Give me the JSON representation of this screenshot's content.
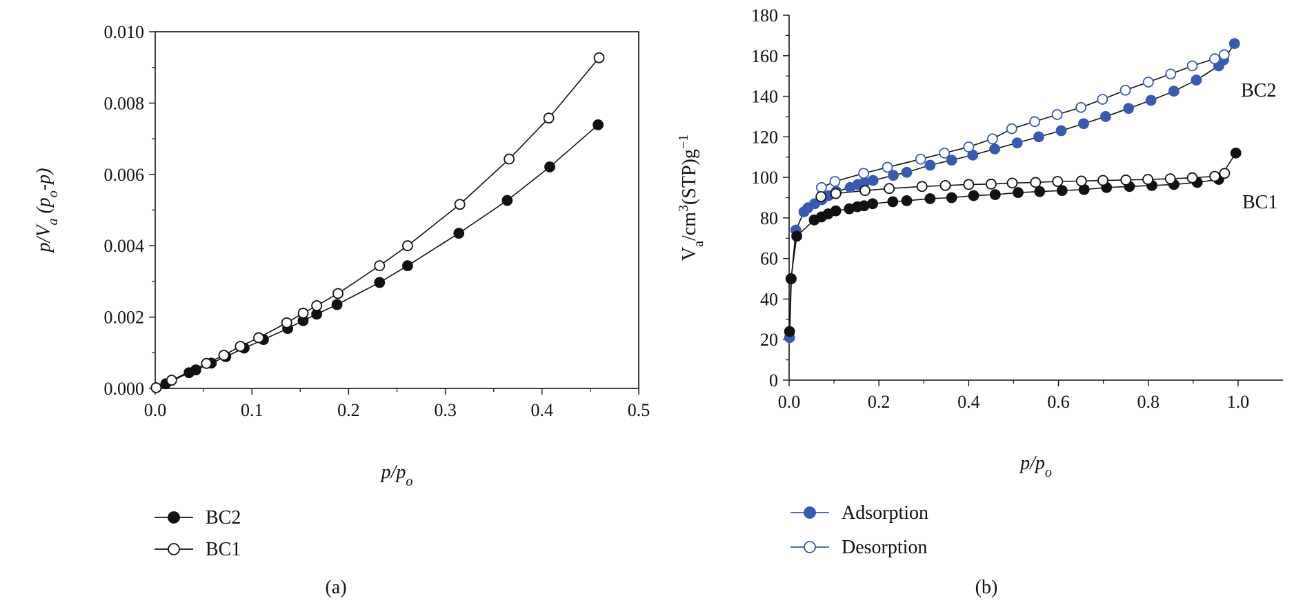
{
  "chart_data": [
    {
      "panel": "(a)",
      "type": "scatter",
      "xlabel_main": "p/p",
      "xlabel_sub": "o",
      "ylabel_parts": [
        "p/V",
        "a",
        " (p",
        "o",
        "-p)"
      ],
      "xlim": [
        0,
        0.5
      ],
      "ylim": [
        0,
        0.01
      ],
      "xticks": [
        {
          "value": 0.0,
          "label": "0.0"
        },
        {
          "value": 0.1,
          "label": "0.1"
        },
        {
          "value": 0.2,
          "label": "0.2"
        },
        {
          "value": 0.3,
          "label": "0.3"
        },
        {
          "value": 0.4,
          "label": "0.4"
        },
        {
          "value": 0.5,
          "label": "0.5"
        }
      ],
      "yticks": [
        {
          "value": 0.0,
          "label": "0.000"
        },
        {
          "value": 0.002,
          "label": "0.002"
        },
        {
          "value": 0.004,
          "label": "0.004"
        },
        {
          "value": 0.006,
          "label": "0.006"
        },
        {
          "value": 0.008,
          "label": "0.008"
        },
        {
          "value": 0.01,
          "label": "0.010"
        }
      ],
      "series": [
        {
          "name": "BC2",
          "marker": "filled",
          "color": "#111111",
          "x": [
            0.001,
            0.011,
            0.035,
            0.042,
            0.058,
            0.073,
            0.092,
            0.112,
            0.137,
            0.153,
            0.167,
            0.188,
            0.232,
            0.261,
            0.314,
            0.364,
            0.408,
            0.458
          ],
          "y": [
            2e-05,
            0.00013,
            0.00044,
            0.00052,
            0.00071,
            0.00089,
            0.00113,
            0.00137,
            0.00168,
            0.0019,
            0.00208,
            0.00235,
            0.00297,
            0.00344,
            0.00435,
            0.00527,
            0.00621,
            0.00739
          ]
        },
        {
          "name": "BC1",
          "marker": "open",
          "color": "#111111",
          "x": [
            0.001,
            0.017,
            0.053,
            0.071,
            0.088,
            0.107,
            0.136,
            0.153,
            0.167,
            0.189,
            0.232,
            0.261,
            0.315,
            0.366,
            0.407,
            0.459
          ],
          "y": [
            2e-05,
            0.00023,
            0.0007,
            0.00093,
            0.00118,
            0.00142,
            0.00184,
            0.00211,
            0.00232,
            0.00266,
            0.00344,
            0.004,
            0.00516,
            0.00643,
            0.00758,
            0.00927
          ]
        }
      ]
    },
    {
      "panel": "(b)",
      "type": "scatter",
      "xlabel_main": "p/p",
      "xlabel_sub": "o",
      "ylabel_parts": [
        "V",
        "a",
        "/cm",
        "3",
        "(STP)g",
        "−1"
      ],
      "xlim": [
        0,
        1.1
      ],
      "ylim": [
        0,
        180
      ],
      "xticks": [
        {
          "value": 0.0,
          "label": "0.0"
        },
        {
          "value": 0.2,
          "label": "0.2"
        },
        {
          "value": 0.4,
          "label": "0.4"
        },
        {
          "value": 0.6,
          "label": "0.6"
        },
        {
          "value": 0.8,
          "label": "0.8"
        },
        {
          "value": 1.0,
          "label": "1.0"
        }
      ],
      "yticks": [
        {
          "value": 0,
          "label": "0"
        },
        {
          "value": 20,
          "label": "20"
        },
        {
          "value": 40,
          "label": "40"
        },
        {
          "value": 60,
          "label": "60"
        },
        {
          "value": 80,
          "label": "80"
        },
        {
          "value": 100,
          "label": "100"
        },
        {
          "value": 120,
          "label": "120"
        },
        {
          "value": 140,
          "label": "140"
        },
        {
          "value": 160,
          "label": "160"
        },
        {
          "value": 180,
          "label": "180"
        }
      ],
      "annotations": [
        "BC2",
        "BC1"
      ],
      "series": [
        {
          "name": "BC2 Adsorption",
          "marker": "filled",
          "color": "#3a5ab0",
          "x": [
            0.001,
            0.005,
            0.015,
            0.033,
            0.042,
            0.057,
            0.073,
            0.088,
            0.105,
            0.136,
            0.153,
            0.168,
            0.187,
            0.232,
            0.262,
            0.314,
            0.362,
            0.409,
            0.458,
            0.508,
            0.556,
            0.606,
            0.656,
            0.705,
            0.756,
            0.806,
            0.857,
            0.907,
            0.957,
            0.968,
            0.992
          ],
          "y": [
            21,
            50,
            74,
            83,
            85,
            87,
            89,
            91,
            93,
            95,
            96.5,
            97.5,
            98.5,
            101,
            102.5,
            106,
            108.5,
            111,
            114,
            117,
            120,
            123,
            126.5,
            130,
            134,
            138,
            142.5,
            148,
            155,
            158,
            166
          ]
        },
        {
          "name": "BC2 Desorption",
          "marker": "open",
          "color": "#3a5ab0",
          "x": [
            0.072,
            0.102,
            0.166,
            0.219,
            0.293,
            0.346,
            0.4,
            0.453,
            0.496,
            0.547,
            0.597,
            0.65,
            0.698,
            0.749,
            0.8,
            0.85,
            0.898,
            0.948,
            0.969
          ],
          "y": [
            95,
            98,
            102,
            105,
            109,
            112,
            115,
            119,
            124,
            127.5,
            131,
            134.5,
            138.5,
            143,
            147,
            151,
            155,
            158.5,
            160.5
          ]
        },
        {
          "name": "BC1 Adsorption",
          "marker": "filled",
          "color": "#111111",
          "x": [
            0.001,
            0.004,
            0.017,
            0.056,
            0.072,
            0.087,
            0.104,
            0.134,
            0.152,
            0.167,
            0.186,
            0.231,
            0.262,
            0.314,
            0.362,
            0.411,
            0.459,
            0.51,
            0.558,
            0.608,
            0.657,
            0.707,
            0.758,
            0.808,
            0.857,
            0.909,
            0.957,
            0.995
          ],
          "y": [
            24,
            50,
            71,
            79,
            80.5,
            82,
            83.5,
            84.5,
            85.5,
            86,
            87,
            88,
            88.5,
            89.5,
            90,
            91,
            91.5,
            92.5,
            93,
            93.5,
            94,
            95,
            95.5,
            96,
            96.5,
            97.5,
            99,
            112
          ]
        },
        {
          "name": "BC1 Desorption",
          "marker": "open",
          "color": "#111111",
          "x": [
            0.071,
            0.104,
            0.169,
            0.223,
            0.296,
            0.348,
            0.4,
            0.45,
            0.497,
            0.549,
            0.598,
            0.651,
            0.699,
            0.75,
            0.799,
            0.849,
            0.898,
            0.948,
            0.97
          ],
          "y": [
            90.5,
            92,
            93.5,
            94.5,
            95.5,
            96,
            96.5,
            96.7,
            97.2,
            97.5,
            98,
            98.2,
            98.5,
            98.7,
            99,
            99.3,
            99.8,
            100.5,
            102
          ]
        }
      ]
    }
  ],
  "legend_a": [
    {
      "label": "BC2",
      "marker": "filled",
      "color": "#111111"
    },
    {
      "label": "BC1",
      "marker": "open",
      "color": "#111111"
    }
  ],
  "legend_b": [
    {
      "label": "Adsorption",
      "marker": "filled",
      "color": "#3a5ab0"
    },
    {
      "label": "Desorption",
      "marker": "open",
      "color": "#3a5ab0"
    }
  ]
}
